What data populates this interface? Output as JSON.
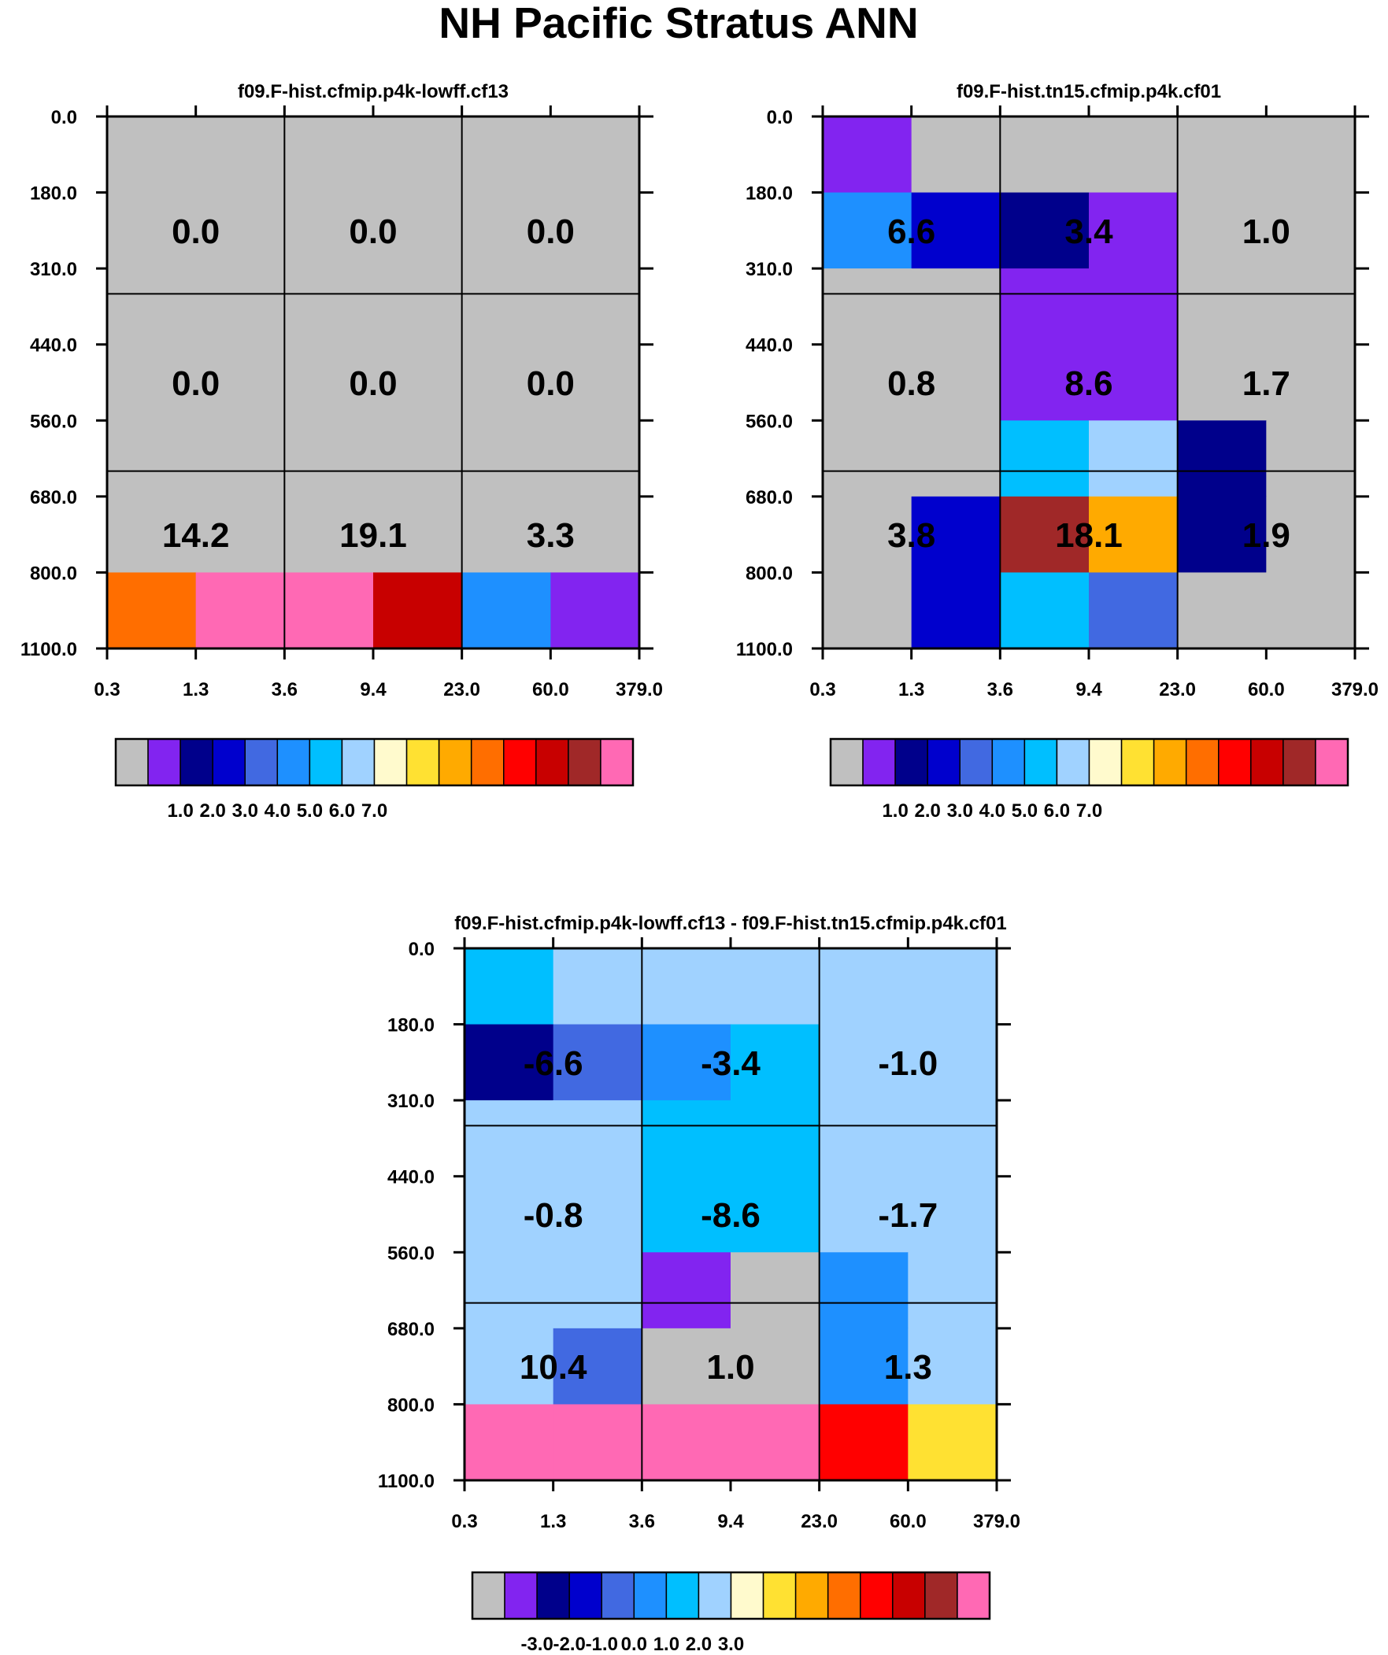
{
  "figure_title": "NH Pacific Stratus ANN",
  "palette": [
    "#C0C0C0",
    "#8224F0",
    "#00008B",
    "#0000CD",
    "#4169E1",
    "#1E90FF",
    "#00BFFF",
    "#A0D2FF",
    "#FFFACD",
    "#FFE132",
    "#FFAA00",
    "#FF6E00",
    "#FF0000",
    "#C80000",
    "#A02828",
    "#FF69B4"
  ],
  "chart_data": [
    {
      "type": "heatmap",
      "title": "f09.F-hist.cfmip.p4k-lowff.cf13",
      "x_tick_labels": [
        "0.3",
        "1.3",
        "3.6",
        "9.4",
        "23.0",
        "60.0",
        "379.0"
      ],
      "y_tick_labels": [
        "0.0",
        "180.0",
        "310.0",
        "440.0",
        "560.0",
        "680.0",
        "800.0",
        "1100.0"
      ],
      "cells": [
        [
          0,
          0,
          0,
          0,
          0,
          0
        ],
        [
          0,
          0,
          0,
          0,
          0,
          0
        ],
        [
          0,
          0,
          0,
          0,
          0,
          0
        ],
        [
          0,
          0,
          0,
          0,
          0,
          0
        ],
        [
          0,
          0,
          0,
          0,
          0,
          0
        ],
        [
          0,
          0,
          0,
          0,
          0,
          0
        ],
        [
          11,
          15,
          15,
          13,
          5,
          1
        ]
      ],
      "cell_values": [
        [
          "0.0",
          "0.0",
          "0.0"
        ],
        [
          "0.0",
          "0.0",
          "0.0"
        ],
        [
          "14.2",
          "19.1",
          "3.3"
        ]
      ],
      "colorbar_labels": [
        "1.0",
        "2.0",
        "3.0",
        "4.0",
        "5.0",
        "6.0",
        "7.0"
      ]
    },
    {
      "type": "heatmap",
      "title": "f09.F-hist.tn15.cfmip.p4k.cf01",
      "x_tick_labels": [
        "0.3",
        "1.3",
        "3.6",
        "9.4",
        "23.0",
        "60.0",
        "379.0"
      ],
      "y_tick_labels": [
        "0.0",
        "180.0",
        "310.0",
        "440.0",
        "560.0",
        "680.0",
        "800.0",
        "1100.0"
      ],
      "cells": [
        [
          1,
          0,
          0,
          0,
          0,
          0
        ],
        [
          5,
          3,
          2,
          1,
          0,
          0
        ],
        [
          0,
          0,
          1,
          1,
          0,
          0
        ],
        [
          0,
          0,
          1,
          1,
          0,
          0
        ],
        [
          0,
          0,
          6,
          7,
          2,
          0
        ],
        [
          0,
          3,
          14,
          10,
          2,
          0
        ],
        [
          0,
          3,
          6,
          4,
          0,
          0
        ]
      ],
      "cell_values": [
        [
          "6.6",
          "3.4",
          "1.0"
        ],
        [
          "0.8",
          "8.6",
          "1.7"
        ],
        [
          "3.8",
          "18.1",
          "1.9"
        ]
      ],
      "colorbar_labels": [
        "1.0",
        "2.0",
        "3.0",
        "4.0",
        "5.0",
        "6.0",
        "7.0"
      ]
    },
    {
      "type": "heatmap",
      "title": "f09.F-hist.cfmip.p4k-lowff.cf13 - f09.F-hist.tn15.cfmip.p4k.cf01",
      "x_tick_labels": [
        "0.3",
        "1.3",
        "3.6",
        "9.4",
        "23.0",
        "60.0",
        "379.0"
      ],
      "y_tick_labels": [
        "0.0",
        "180.0",
        "310.0",
        "440.0",
        "560.0",
        "680.0",
        "800.0",
        "1100.0"
      ],
      "cells": [
        [
          6,
          7,
          7,
          7,
          7,
          7
        ],
        [
          2,
          4,
          5,
          6,
          7,
          7
        ],
        [
          7,
          7,
          6,
          6,
          7,
          7
        ],
        [
          7,
          7,
          6,
          6,
          7,
          7
        ],
        [
          7,
          7,
          1,
          0,
          5,
          7
        ],
        [
          7,
          4,
          0,
          0,
          5,
          7
        ],
        [
          15,
          15,
          15,
          15,
          12,
          9
        ]
      ],
      "cell_values": [
        [
          "-6.6",
          "-3.4",
          "-1.0"
        ],
        [
          "-0.8",
          "-8.6",
          "-1.7"
        ],
        [
          "10.4",
          "1.0",
          "1.3"
        ]
      ],
      "colorbar_labels": [
        "-3.0",
        "-2.0",
        "-1.0",
        "0.0",
        "1.0",
        "2.0",
        "3.0"
      ]
    }
  ]
}
